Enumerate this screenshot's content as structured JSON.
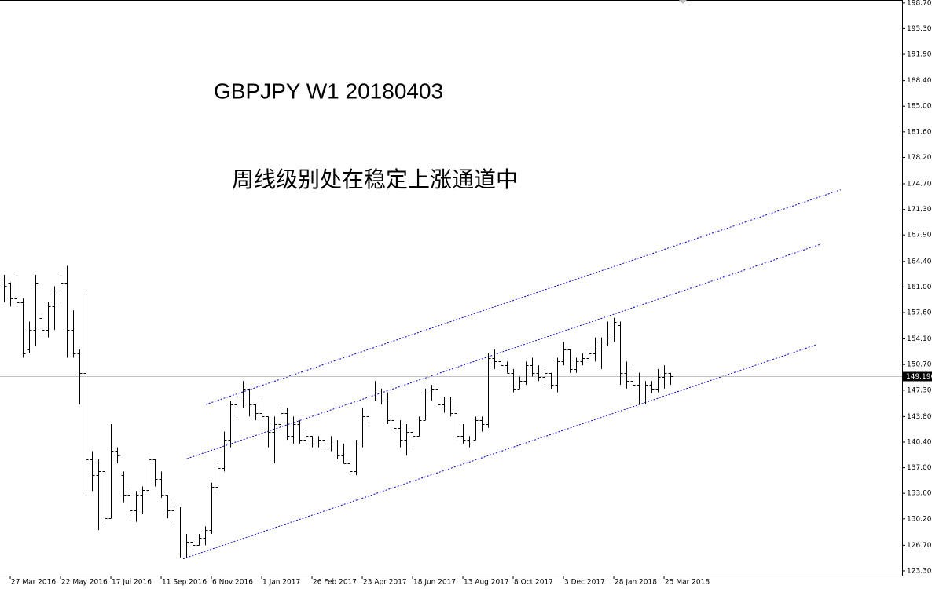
{
  "chart_data": {
    "type": "ohlc",
    "title": "GBPJPY W1 20180403",
    "subtitle": "周线级别处在稳定上涨通道中",
    "color": "#000000",
    "categories": [
      null,
      "27 Mar 2016",
      null,
      null,
      null,
      null,
      null,
      null,
      null,
      "22 May 2016",
      null,
      null,
      null,
      null,
      null,
      null,
      null,
      "17 Jul 2016",
      null,
      null,
      null,
      null,
      null,
      null,
      null,
      "11 Sep 2016",
      null,
      null,
      null,
      null,
      null,
      null,
      null,
      "6 Nov 2016",
      null,
      null,
      null,
      null,
      null,
      null,
      null,
      "1 Jan 2017",
      null,
      null,
      null,
      null,
      null,
      null,
      null,
      "26 Feb 2017",
      null,
      null,
      null,
      null,
      null,
      null,
      null,
      "23 Apr 2017",
      null,
      null,
      null,
      null,
      null,
      null,
      null,
      "18 Jun 2017",
      null,
      null,
      null,
      null,
      null,
      null,
      null,
      "13 Aug 2017",
      null,
      null,
      null,
      null,
      null,
      null,
      null,
      "8 Oct 2017",
      null,
      null,
      null,
      null,
      null,
      null,
      null,
      "3 Dec 2017",
      null,
      null,
      null,
      null,
      null,
      null,
      null,
      "28 Jan 2018",
      null,
      null,
      null,
      null,
      null,
      null,
      null,
      "25 Mar 2018",
      null
    ],
    "open": [
      162.0,
      161.6,
      159.5,
      159.0,
      152.7,
      155.3,
      156.9,
      155.3,
      158.4,
      160.5,
      161.6,
      155.3,
      152.2,
      149.6,
      138.1,
      136.0,
      136.5,
      130.3,
      139.2,
      136.0,
      133.4,
      131.3,
      133.4,
      134.0,
      138.1,
      135.5,
      133.4,
      131.3,
      131.8,
      125.6,
      127.2,
      126.7,
      127.7,
      128.7,
      134.5,
      137.0,
      140.7,
      145.4,
      146.4,
      147.5,
      145.4,
      144.3,
      143.8,
      141.8,
      142.8,
      144.3,
      141.2,
      142.8,
      140.7,
      141.2,
      140.2,
      140.7,
      139.7,
      140.2,
      138.6,
      137.6,
      136.5,
      140.2,
      143.8,
      146.4,
      147.0,
      145.9,
      143.3,
      142.3,
      140.7,
      141.8,
      141.2,
      143.3,
      147.0,
      147.5,
      145.4,
      145.9,
      144.3,
      141.2,
      140.7,
      140.7,
      143.3,
      142.8,
      151.6,
      151.1,
      150.6,
      149.6,
      147.5,
      148.5,
      150.6,
      149.6,
      149.1,
      149.6,
      148.0,
      151.1,
      152.7,
      150.1,
      151.1,
      151.6,
      152.2,
      153.2,
      153.7,
      154.3,
      155.9,
      149.6,
      148.5,
      148.0,
      145.9,
      148.0,
      147.5,
      149.1,
      149.6
    ],
    "high": [
      162.6,
      161.6,
      162.6,
      159.5,
      156.4,
      162.6,
      157.4,
      159.0,
      161.1,
      162.6,
      163.8,
      157.9,
      152.7,
      160.0,
      139.2,
      138.1,
      136.5,
      142.8,
      139.7,
      136.5,
      134.5,
      133.9,
      134.5,
      138.6,
      138.1,
      136.5,
      133.4,
      132.4,
      131.8,
      128.2,
      128.2,
      128.2,
      129.2,
      135.0,
      137.6,
      141.8,
      145.9,
      146.9,
      148.5,
      147.5,
      145.4,
      145.9,
      143.8,
      143.8,
      145.4,
      144.9,
      143.8,
      143.3,
      142.3,
      141.2,
      141.2,
      140.7,
      141.2,
      140.7,
      140.2,
      138.1,
      140.7,
      144.9,
      147.0,
      148.5,
      147.5,
      147.0,
      143.8,
      143.3,
      142.8,
      142.3,
      143.8,
      147.5,
      148.0,
      147.5,
      146.4,
      146.4,
      144.9,
      142.8,
      141.2,
      143.8,
      143.8,
      152.2,
      152.7,
      151.6,
      151.1,
      150.1,
      149.1,
      151.1,
      151.6,
      150.6,
      150.1,
      149.6,
      151.6,
      153.7,
      152.7,
      151.6,
      152.2,
      152.7,
      154.3,
      154.3,
      156.4,
      156.9,
      156.4,
      151.1,
      150.6,
      149.6,
      148.5,
      148.5,
      150.1,
      150.6,
      149.6
    ],
    "low": [
      159.0,
      158.4,
      158.4,
      151.6,
      152.2,
      153.2,
      154.3,
      154.3,
      155.3,
      158.4,
      151.6,
      151.6,
      145.4,
      133.9,
      133.9,
      128.7,
      129.8,
      130.3,
      137.6,
      132.4,
      130.3,
      129.8,
      130.8,
      133.4,
      134.5,
      133.0,
      130.3,
      129.8,
      125.1,
      125.1,
      126.1,
      126.7,
      126.7,
      128.2,
      134.0,
      136.5,
      139.7,
      143.3,
      144.9,
      143.8,
      143.3,
      142.3,
      139.7,
      137.6,
      142.3,
      140.7,
      140.2,
      140.2,
      140.2,
      139.7,
      139.7,
      139.2,
      139.2,
      138.1,
      137.6,
      136.0,
      136.0,
      139.7,
      142.8,
      145.9,
      145.4,
      142.8,
      141.8,
      139.7,
      138.6,
      139.7,
      141.2,
      143.3,
      145.9,
      144.9,
      144.3,
      143.8,
      140.7,
      140.2,
      139.7,
      140.7,
      141.8,
      142.3,
      150.1,
      150.1,
      149.6,
      147.0,
      147.5,
      148.0,
      149.1,
      148.5,
      148.0,
      147.5,
      147.0,
      150.6,
      149.6,
      149.6,
      150.6,
      151.1,
      151.1,
      150.1,
      153.2,
      153.7,
      148.0,
      147.5,
      147.5,
      145.4,
      145.4,
      146.9,
      147.0,
      147.5,
      148.0
    ],
    "close": [
      161.1,
      159.5,
      159.0,
      152.2,
      155.3,
      161.6,
      155.3,
      158.4,
      160.5,
      161.6,
      155.3,
      152.2,
      149.6,
      138.1,
      136.0,
      136.5,
      130.3,
      139.2,
      138.6,
      133.4,
      131.3,
      133.4,
      134.0,
      138.1,
      135.5,
      133.4,
      131.3,
      131.8,
      125.6,
      127.2,
      126.7,
      127.7,
      128.7,
      134.5,
      137.0,
      140.7,
      145.4,
      146.4,
      147.5,
      145.4,
      144.3,
      143.8,
      141.8,
      142.8,
      144.3,
      141.2,
      142.8,
      140.7,
      141.2,
      140.2,
      140.7,
      139.7,
      140.2,
      138.6,
      137.6,
      136.5,
      140.2,
      143.8,
      146.4,
      147.0,
      145.9,
      143.3,
      142.3,
      140.7,
      141.8,
      141.2,
      143.3,
      147.0,
      147.5,
      145.4,
      145.9,
      144.3,
      141.2,
      140.7,
      140.2,
      143.3,
      142.8,
      151.6,
      151.1,
      150.6,
      149.6,
      147.5,
      148.5,
      150.6,
      149.6,
      149.1,
      149.6,
      148.0,
      151.1,
      152.7,
      150.1,
      151.1,
      151.6,
      152.2,
      153.2,
      153.7,
      154.3,
      156.4,
      149.6,
      148.5,
      148.0,
      145.9,
      148.0,
      147.5,
      149.1,
      149.6,
      149.196
    ],
    "ylim": [
      122.67,
      199.1
    ],
    "yticks": [
      {
        "value": 198.7,
        "label": "198.700"
      },
      {
        "value": 195.3,
        "label": "195.300"
      },
      {
        "value": 191.9,
        "label": "191.900"
      },
      {
        "value": 188.4,
        "label": "188.400"
      },
      {
        "value": 185.0,
        "label": "185.000"
      },
      {
        "value": 181.6,
        "label": "181.600"
      },
      {
        "value": 178.2,
        "label": "178.200"
      },
      {
        "value": 174.7,
        "label": "174.700"
      },
      {
        "value": 171.3,
        "label": "171.300"
      },
      {
        "value": 167.9,
        "label": "167.900"
      },
      {
        "value": 164.4,
        "label": "164.400"
      },
      {
        "value": 161.0,
        "label": "161.000"
      },
      {
        "value": 157.6,
        "label": "157.600"
      },
      {
        "value": 154.1,
        "label": "154.100"
      },
      {
        "value": 150.7,
        "label": "150.700"
      },
      {
        "value": 147.3,
        "label": "147.300"
      },
      {
        "value": 143.8,
        "label": "143.800"
      },
      {
        "value": 140.4,
        "label": "140.400"
      },
      {
        "value": 137.0,
        "label": "137.000"
      },
      {
        "value": 133.6,
        "label": "133.600"
      },
      {
        "value": 130.2,
        "label": "130.200"
      },
      {
        "value": 126.7,
        "label": "126.700"
      },
      {
        "value": 123.3,
        "label": "123.300"
      }
    ],
    "channel_color": "#0000cc",
    "channel_lines": [
      {
        "x": [
          32.1,
          133.1
        ],
        "y": [
          145.4,
          173.9
        ]
      },
      {
        "x": [
          29.1,
          130.0
        ],
        "y": [
          138.2,
          166.7
        ]
      },
      {
        "x": [
          28.5,
          129.1
        ],
        "y": [
          124.9,
          153.3
        ]
      }
    ]
  }
}
